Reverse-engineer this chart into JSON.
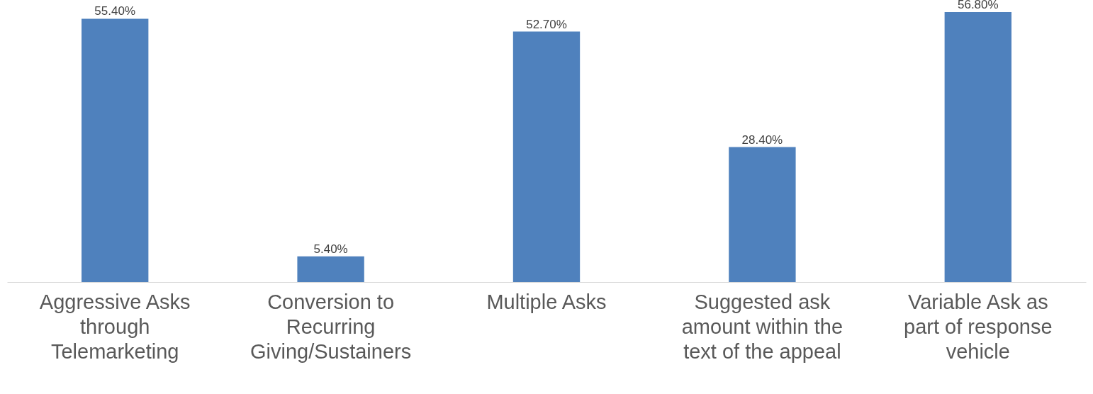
{
  "chart_data": {
    "type": "bar",
    "categories": [
      "Aggressive Asks through Telemarketing",
      "Conversion to Recurring Giving/Sustainers",
      "Multiple Asks",
      "Suggested ask amount within the text of the appeal",
      "Variable Ask as part of response vehicle"
    ],
    "values": [
      55.4,
      5.4,
      52.7,
      28.4,
      56.8
    ],
    "color": "#4f81bd",
    "value_labels": [
      "55.40%",
      "5.40%",
      "52.70%",
      "28.40%",
      "56.80%"
    ],
    "grid": false
  }
}
